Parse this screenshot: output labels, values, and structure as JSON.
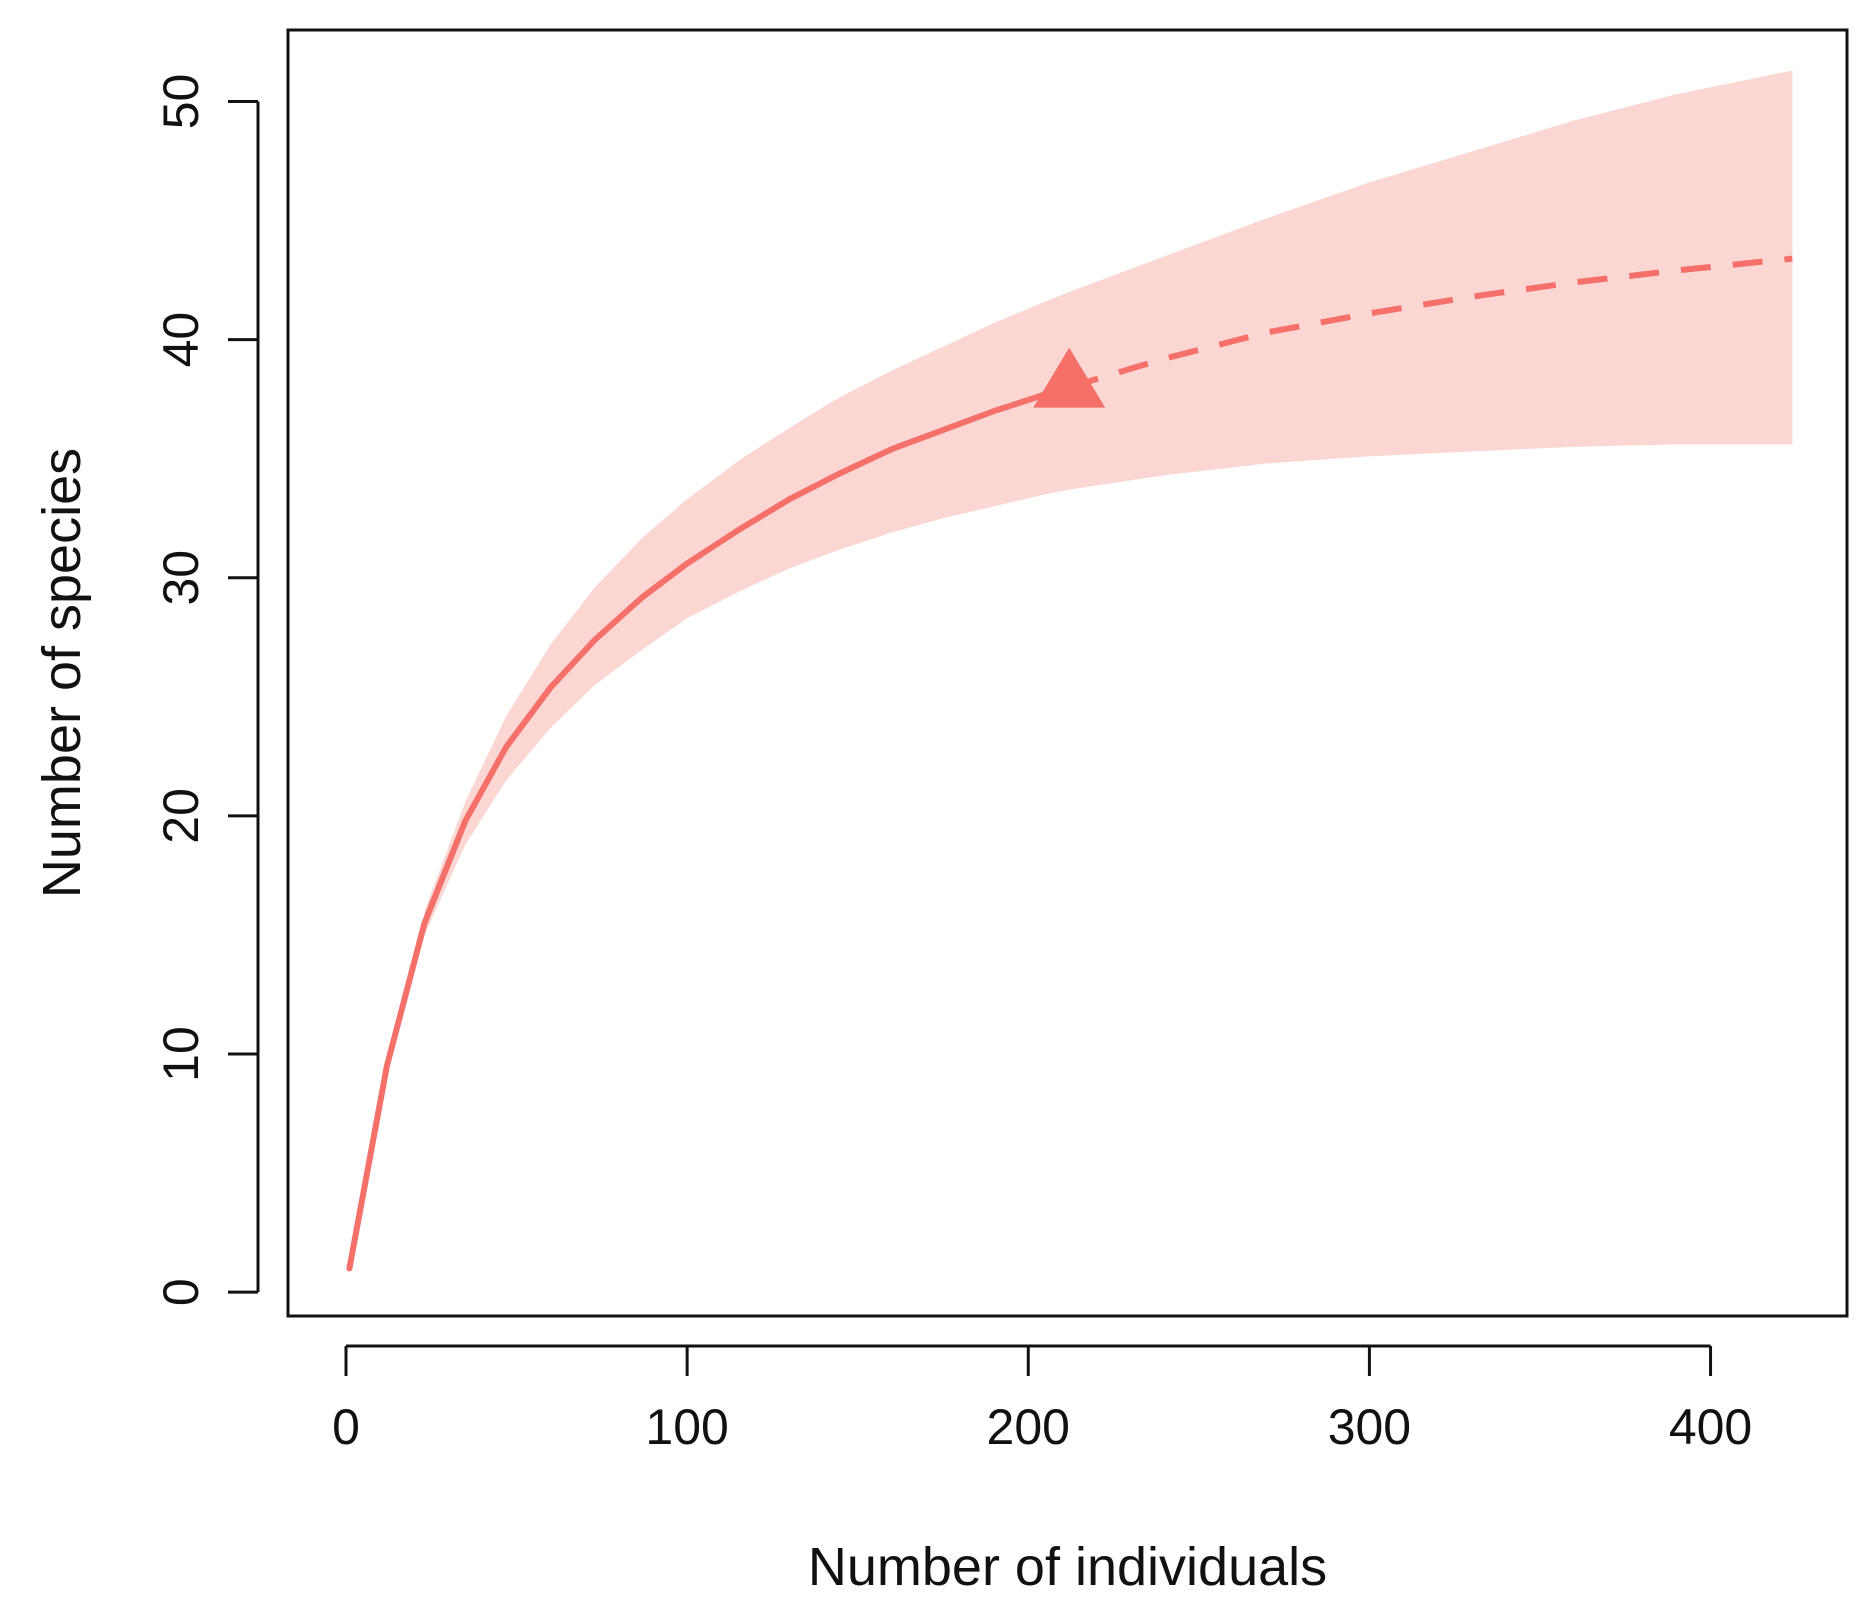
{
  "chart_data": {
    "type": "line",
    "title": "",
    "xlabel": "Number of individuals",
    "ylabel": "Number of species",
    "xlim": [
      -17,
      440
    ],
    "ylim": [
      -1,
      53
    ],
    "x_ticks": [
      0,
      100,
      200,
      300,
      400
    ],
    "y_ticks": [
      0,
      10,
      20,
      30,
      40,
      50
    ],
    "grid": false,
    "legend": "none",
    "colors": {
      "line": "#f47068",
      "band": "#fbd6d2",
      "marker": "#f47068"
    },
    "observed_point": {
      "x": 212,
      "y": 38
    },
    "series": [
      {
        "style": "solid",
        "x": [
          1,
          12,
          23,
          35,
          47,
          60,
          73,
          87,
          100,
          115,
          130,
          145,
          160,
          175,
          190,
          205,
          212
        ],
        "y": [
          1,
          9.5,
          15.5,
          19.8,
          22.9,
          25.4,
          27.4,
          29.2,
          30.6,
          32.0,
          33.3,
          34.4,
          35.4,
          36.2,
          37.0,
          37.7,
          38.0
        ]
      },
      {
        "style": "dashed",
        "x": [
          212,
          240,
          270,
          300,
          330,
          360,
          390,
          424
        ],
        "y": [
          38.0,
          39.2,
          40.3,
          41.1,
          41.8,
          42.4,
          42.9,
          43.4
        ]
      }
    ],
    "confidence_band": {
      "x": [
        23,
        35,
        47,
        60,
        73,
        87,
        100,
        115,
        130,
        145,
        160,
        175,
        190,
        205,
        212,
        240,
        270,
        300,
        330,
        360,
        390,
        424
      ],
      "lower": [
        15.0,
        18.8,
        21.5,
        23.7,
        25.5,
        27.0,
        28.3,
        29.4,
        30.4,
        31.2,
        31.9,
        32.5,
        33.0,
        33.5,
        33.7,
        34.3,
        34.8,
        35.1,
        35.3,
        35.5,
        35.6,
        35.6
      ],
      "upper": [
        16.0,
        20.6,
        24.2,
        27.2,
        29.6,
        31.7,
        33.3,
        34.9,
        36.3,
        37.6,
        38.7,
        39.7,
        40.7,
        41.6,
        42.0,
        43.5,
        45.1,
        46.6,
        47.9,
        49.2,
        50.3,
        51.3
      ]
    }
  }
}
